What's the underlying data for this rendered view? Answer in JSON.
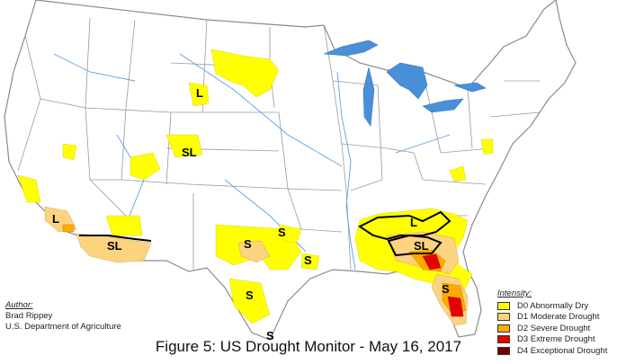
{
  "caption": "Figure 5: US Drought Monitor - May 16, 2017",
  "author": {
    "heading": "Author:",
    "name": "Brad Rippey",
    "agency": "U.S. Department of Agriculture"
  },
  "legend": {
    "title": "Intensity:",
    "items": [
      {
        "label": "D0 Abnormally Dry",
        "color": "#ffff00"
      },
      {
        "label": "D1 Moderate Drought",
        "color": "#fcd37f"
      },
      {
        "label": "D2 Severe Drought",
        "color": "#ffaa00"
      },
      {
        "label": "D3 Extreme Drought",
        "color": "#e60000"
      },
      {
        "label": "D4 Exceptional Drought",
        "color": "#730000"
      }
    ]
  },
  "impact_labels": [
    {
      "text": "L"
    },
    {
      "text": "SL"
    },
    {
      "text": "L"
    },
    {
      "text": "SL"
    },
    {
      "text": "S"
    },
    {
      "text": "S"
    },
    {
      "text": "S"
    },
    {
      "text": "S"
    },
    {
      "text": "S"
    },
    {
      "text": "L"
    },
    {
      "text": "SL"
    },
    {
      "text": "S"
    }
  ],
  "colors": {
    "land": "#ffffff",
    "borders": "#9a9a9a",
    "rivers": "#5aa0e6",
    "lakes": "#4a90d9"
  }
}
